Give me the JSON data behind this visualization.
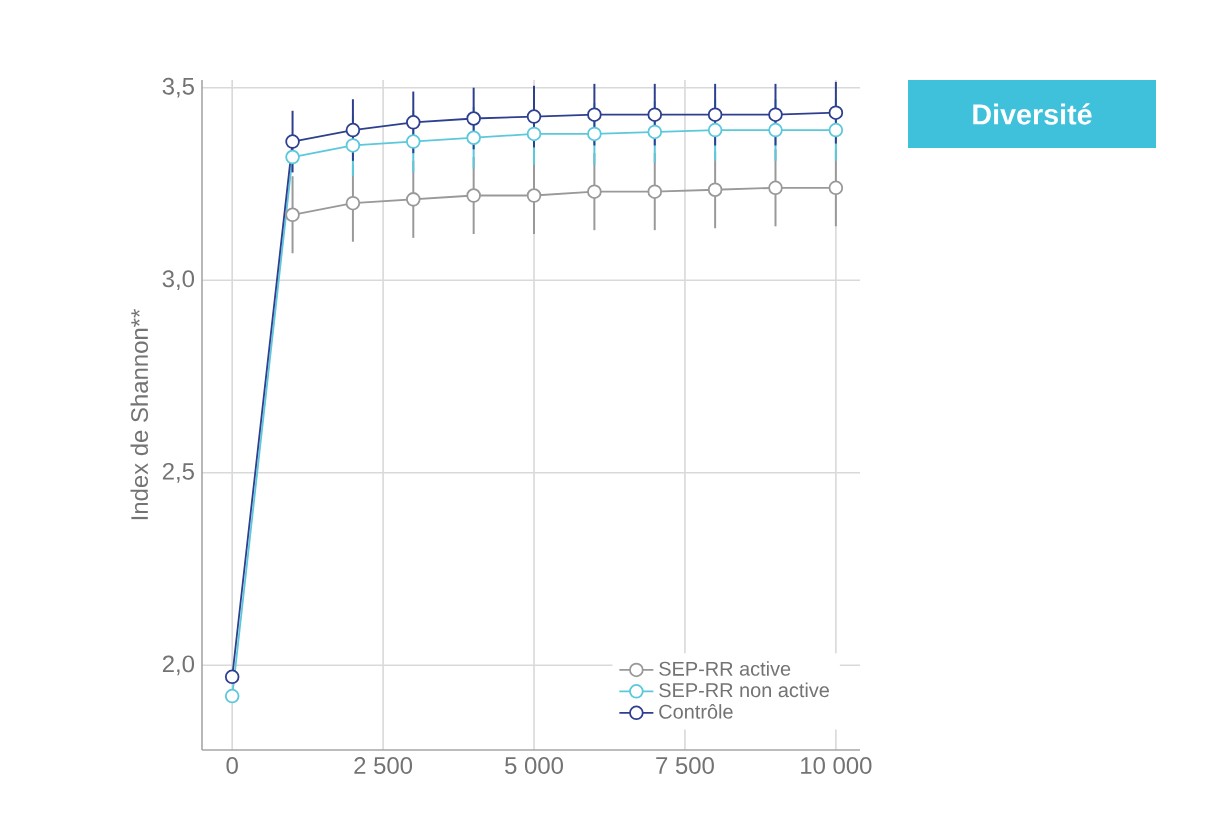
{
  "chart_data": {
    "type": "line",
    "title": "Diversité",
    "ylabel": "Index de Shannon**",
    "x": [
      0,
      1000,
      2000,
      3000,
      4000,
      5000,
      6000,
      7000,
      8000,
      9000,
      10000
    ],
    "xlim": [
      -500,
      10400
    ],
    "ylim": [
      1.78,
      3.52
    ],
    "xticks": [
      0,
      {
        "value": 2500,
        "label": "2 500"
      },
      {
        "value": 5000,
        "label": "5 000"
      },
      {
        "value": 7500,
        "label": "7 500"
      },
      {
        "value": 10000,
        "label": "10 000"
      }
    ],
    "yticks": [
      {
        "value": 2.0,
        "label": "2,0"
      },
      {
        "value": 2.5,
        "label": "2,5"
      },
      {
        "value": 3.0,
        "label": "3,0"
      },
      {
        "value": 3.5,
        "label": "3,5"
      }
    ],
    "grid": true,
    "legend": "bottom right",
    "marker": "circle",
    "line_style": "solid",
    "series": [
      {
        "name": "SEP-RR active",
        "color": "#999999",
        "values": [
          null,
          3.17,
          3.2,
          3.21,
          3.22,
          3.22,
          3.23,
          3.23,
          3.235,
          3.24,
          3.24
        ],
        "errors": [
          null,
          0.1,
          0.1,
          0.1,
          0.1,
          0.1,
          0.1,
          0.1,
          0.1,
          0.1,
          0.1
        ]
      },
      {
        "name": "SEP-RR non active",
        "color": "#5bc8dc",
        "values": [
          1.92,
          3.32,
          3.35,
          3.36,
          3.37,
          3.38,
          3.38,
          3.385,
          3.39,
          3.39,
          3.39
        ],
        "errors": [
          null,
          null,
          0.08,
          0.08,
          0.08,
          0.08,
          0.08,
          0.08,
          0.08,
          0.08,
          0.08
        ]
      },
      {
        "name": "Contrôle",
        "color": "#2e3f8f",
        "values": [
          1.97,
          3.36,
          3.39,
          3.41,
          3.42,
          3.425,
          3.43,
          3.43,
          3.43,
          3.43,
          3.435
        ],
        "errors": [
          null,
          0.08,
          0.08,
          0.08,
          0.08,
          0.08,
          0.08,
          0.08,
          0.08,
          0.08,
          0.08
        ]
      }
    ]
  }
}
